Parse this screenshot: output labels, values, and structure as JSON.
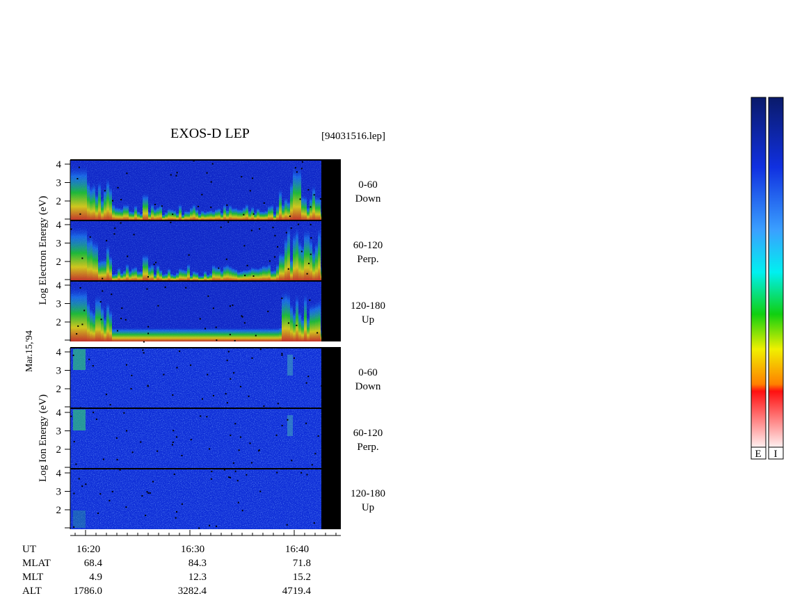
{
  "header": {
    "title": "EXOS-D LEP",
    "file": "[94031516.lep]"
  },
  "electron": {
    "label": "Log Electron Energy (eV)",
    "panels": [
      {
        "ticks": [
          "4",
          "3",
          "2"
        ],
        "angle": "0-60",
        "dir": "Down"
      },
      {
        "ticks": [
          "4",
          "3",
          "2"
        ],
        "angle": "60-120",
        "dir": "Perp."
      },
      {
        "ticks": [
          "4",
          "3",
          "2"
        ],
        "angle": "120-180",
        "dir": "Up"
      }
    ]
  },
  "date": "Mar.15,'94",
  "ion": {
    "label": "Log Ion Energy (eV)",
    "panels": [
      {
        "ticks": [
          "4",
          "3",
          "2"
        ],
        "angle": "0-60",
        "dir": "Down"
      },
      {
        "ticks": [
          "4",
          "3",
          "2"
        ],
        "angle": "60-120",
        "dir": "Perp."
      },
      {
        "ticks": [
          "4",
          "3",
          "2"
        ],
        "angle": "120-180",
        "dir": "Up"
      }
    ]
  },
  "orbit": {
    "rows": [
      [
        "UT",
        "16:20",
        "16:30",
        "16:40"
      ],
      [
        "MLAT",
        "68.4",
        "84.3",
        "71.8"
      ],
      [
        "MLT",
        "4.9",
        "12.3",
        "15.2"
      ],
      [
        "ALT",
        "1786.0",
        "3282.4",
        "4719.4"
      ]
    ]
  },
  "colorbars": [
    "E",
    "I"
  ]
}
